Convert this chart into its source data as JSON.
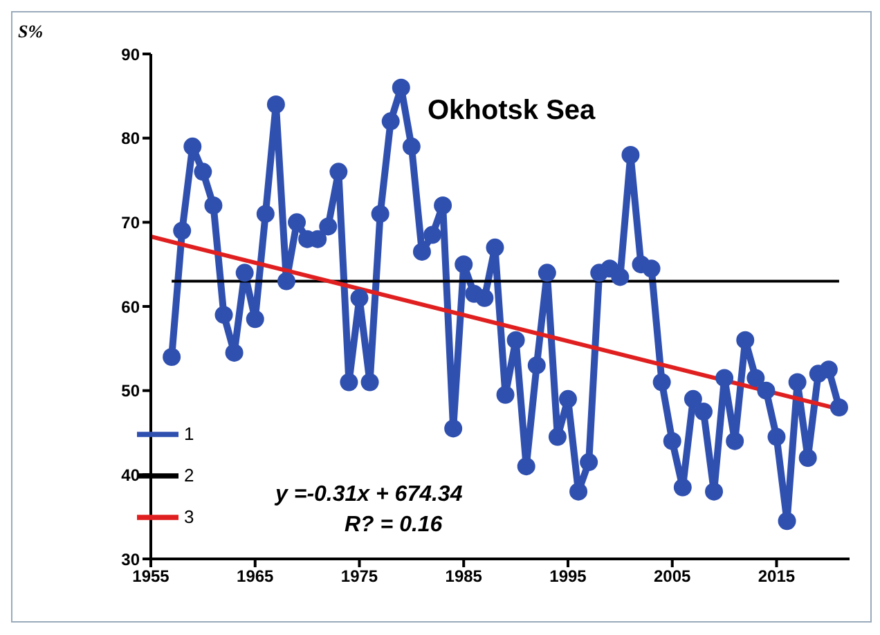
{
  "chart_data": {
    "type": "line",
    "title": "Okhotsk Sea",
    "ylabel": "S%",
    "xlim": [
      1955,
      2022
    ],
    "xticks": [
      1955,
      1965,
      1975,
      1985,
      1995,
      2005,
      2015
    ],
    "ylim": [
      30,
      90
    ],
    "yticks": [
      30,
      40,
      50,
      60,
      70,
      80,
      90
    ],
    "legend": "bottom left",
    "annotations": [
      "y =-0.31x + 674.34",
      "R? = 0.16"
    ],
    "series": [
      {
        "name": "1",
        "marker": "circle",
        "color": "#3050b0",
        "x": [
          1957,
          1958,
          1959,
          1960,
          1961,
          1962,
          1963,
          1964,
          1965,
          1966,
          1967,
          1968,
          1969,
          1970,
          1971,
          1972,
          1973,
          1974,
          1975,
          1976,
          1977,
          1978,
          1979,
          1980,
          1981,
          1982,
          1983,
          1984,
          1985,
          1986,
          1987,
          1988,
          1989,
          1990,
          1991,
          1992,
          1993,
          1994,
          1995,
          1996,
          1997,
          1998,
          1999,
          2000,
          2001,
          2002,
          2003,
          2004,
          2005,
          2006,
          2007,
          2008,
          2009,
          2010,
          2011,
          2012,
          2013,
          2014,
          2015,
          2016,
          2017,
          2018,
          2019,
          2020,
          2021
        ],
        "values": [
          54,
          69,
          79,
          76,
          72,
          59,
          54.5,
          64,
          58.5,
          71,
          84,
          63,
          70,
          68,
          68,
          69.5,
          76,
          51,
          61,
          51,
          71,
          82,
          86,
          79,
          66.5,
          68.5,
          72,
          45.5,
          65,
          61.5,
          61,
          67,
          49.5,
          56,
          41,
          53,
          64,
          44.5,
          49,
          38,
          41.5,
          64,
          64.5,
          63.5,
          78,
          65,
          64.5,
          51,
          44,
          38.5,
          49,
          47.5,
          38,
          51.5,
          44,
          56,
          51.5,
          50,
          44.5,
          34.5,
          51,
          42,
          52,
          52.5,
          48
        ]
      },
      {
        "name": "2",
        "marker": "none",
        "color": "#000000",
        "x": [
          1957,
          2021
        ],
        "values": [
          63,
          63
        ]
      },
      {
        "name": "3",
        "marker": "none",
        "color": "#e02020",
        "x": [
          1955,
          2021
        ],
        "values": [
          68.3,
          47.8
        ]
      }
    ]
  }
}
